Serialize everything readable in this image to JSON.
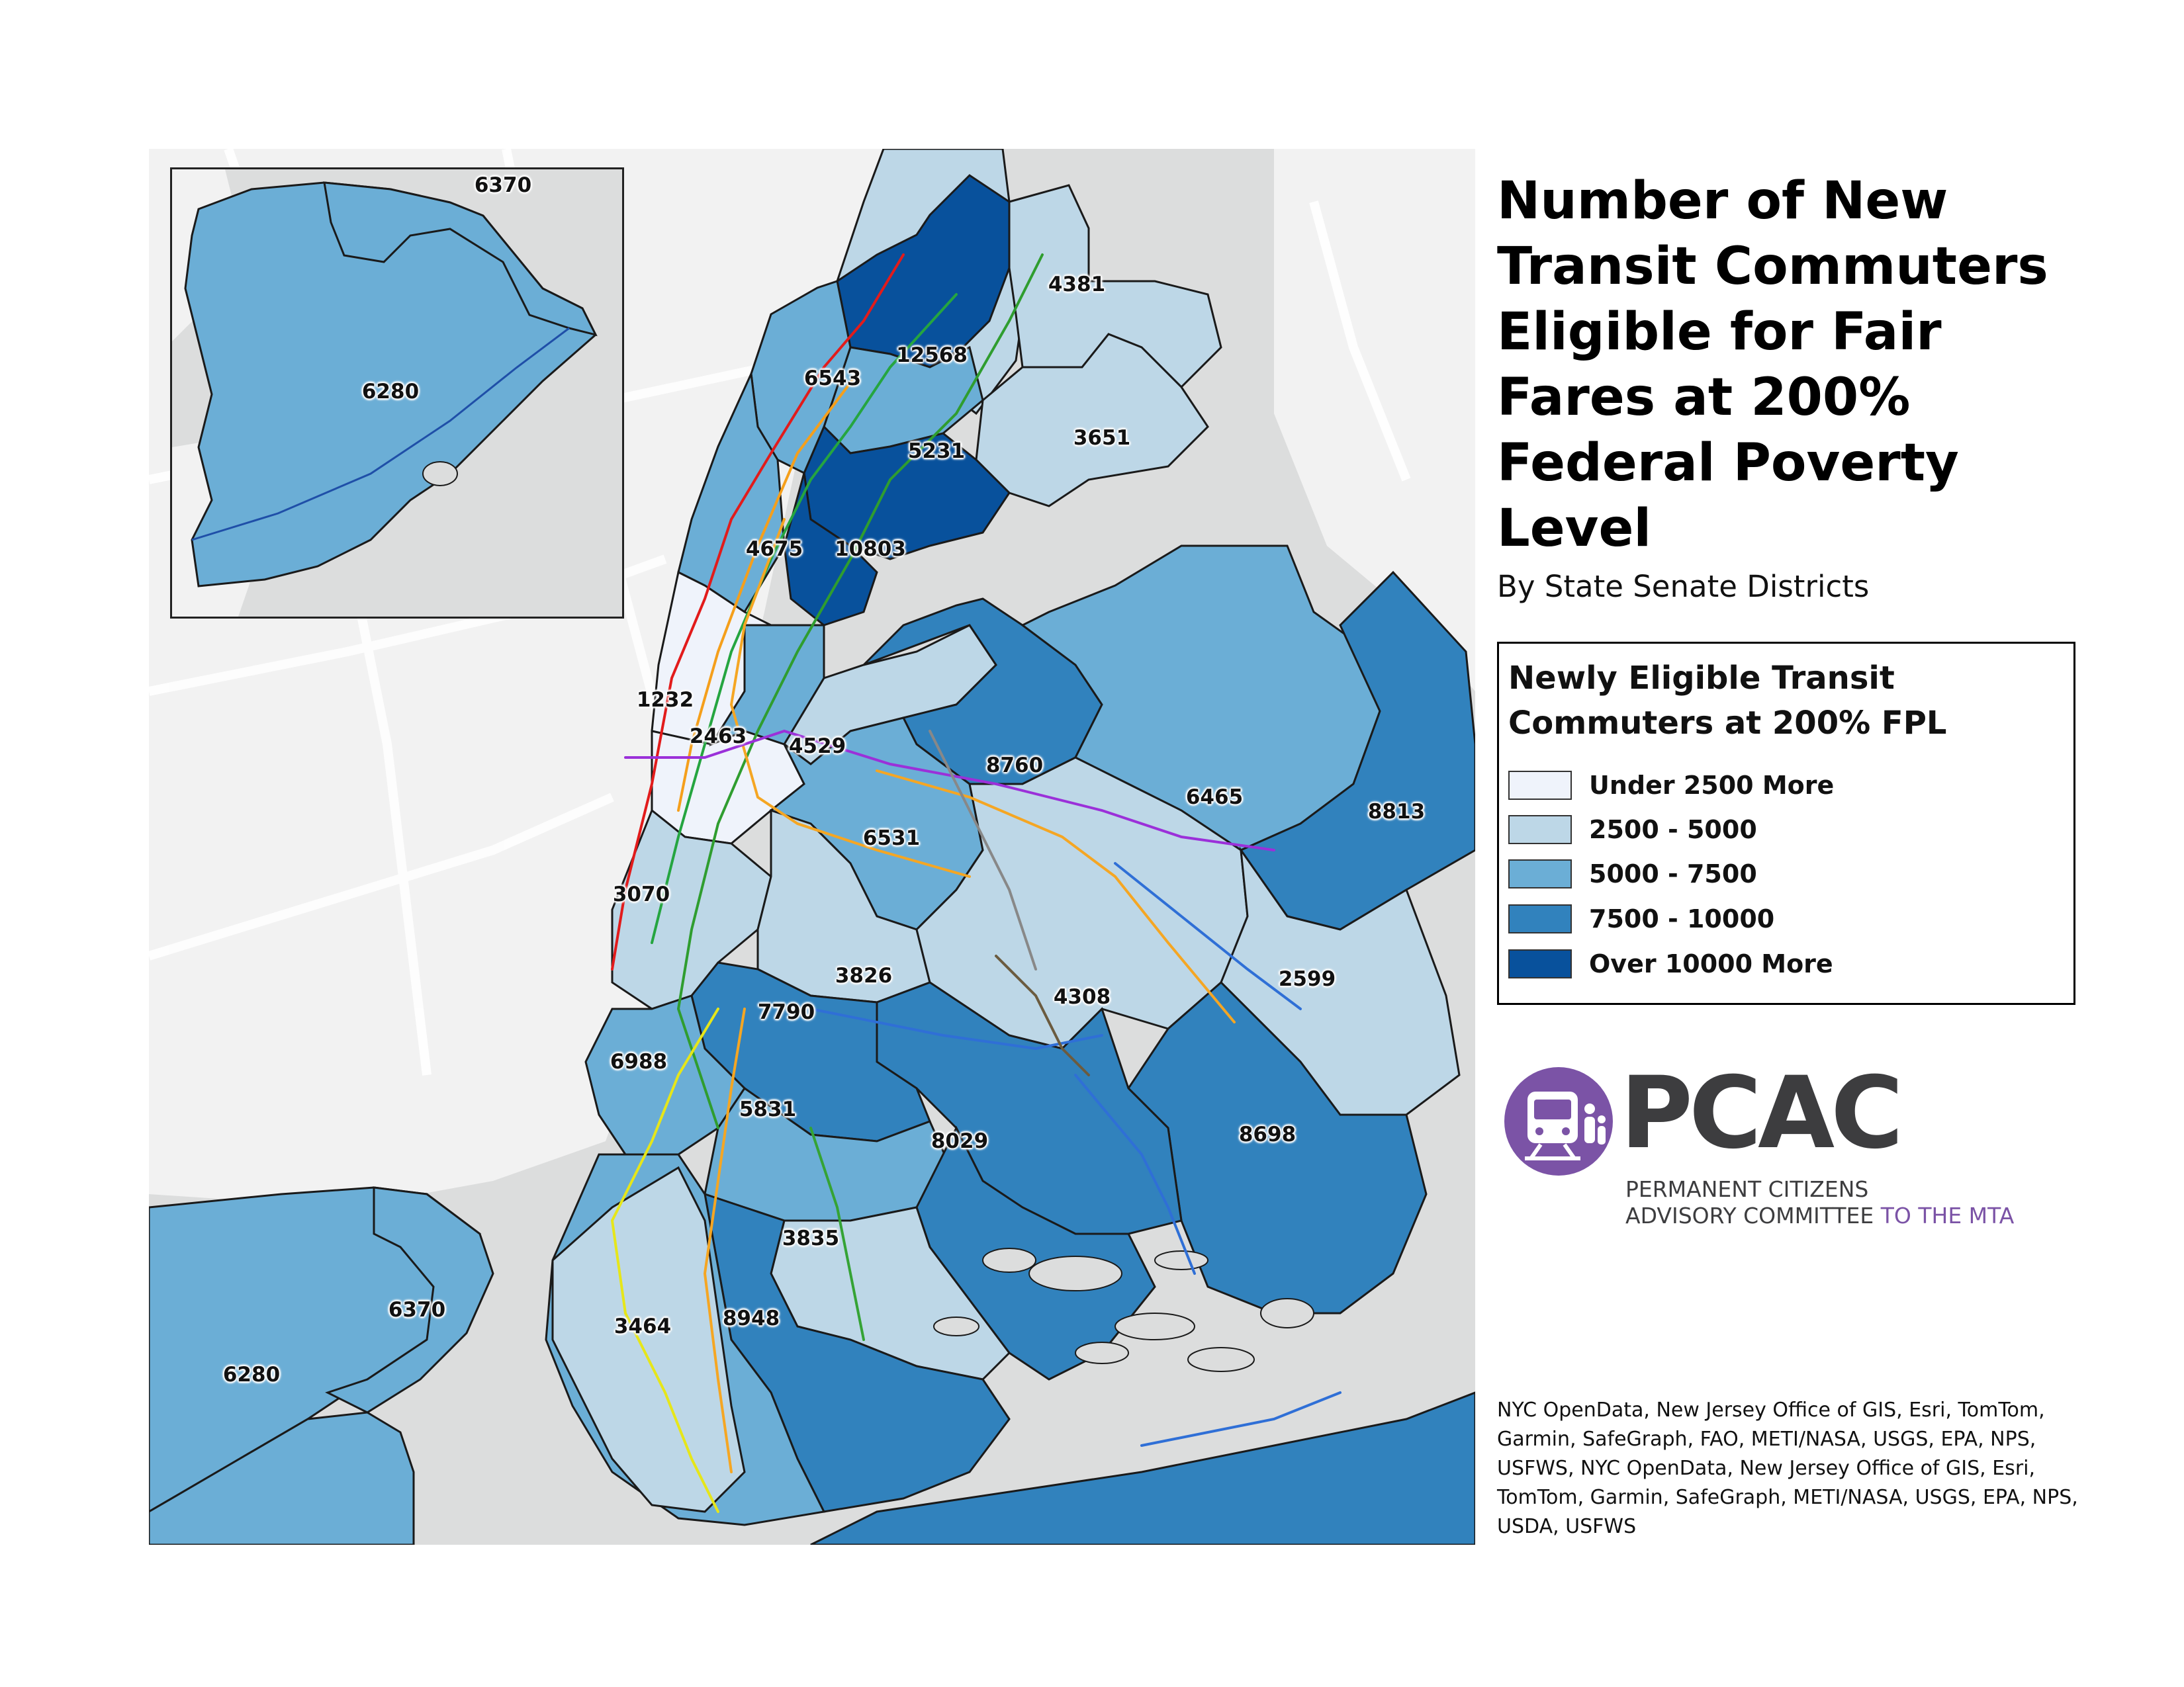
{
  "title": "Number of New Transit Commuters Eligible for Fair Fares at 200% Federal Poverty Level",
  "subtitle": "By State Senate Districts",
  "legend": {
    "title": "Newly Eligible Transit Commuters at 200% FPL",
    "items": [
      {
        "label": "Under 2500 More",
        "color": "#eff3fb"
      },
      {
        "label": "2500 - 5000",
        "color": "#bdd7e7"
      },
      {
        "label": "5000 - 7500",
        "color": "#6baed6"
      },
      {
        "label": "7500 - 10000",
        "color": "#3182bd"
      },
      {
        "label": "Over 10000 More",
        "color": "#08519c"
      }
    ]
  },
  "districts": [
    {
      "value": "6370"
    },
    {
      "value": "6280"
    },
    {
      "value": "4381"
    },
    {
      "value": "12568"
    },
    {
      "value": "6543"
    },
    {
      "value": "5231"
    },
    {
      "value": "3651"
    },
    {
      "value": "4675"
    },
    {
      "value": "10803"
    },
    {
      "value": "1232"
    },
    {
      "value": "2463"
    },
    {
      "value": "4529"
    },
    {
      "value": "8760"
    },
    {
      "value": "6465"
    },
    {
      "value": "8813"
    },
    {
      "value": "6531"
    },
    {
      "value": "3070"
    },
    {
      "value": "3826"
    },
    {
      "value": "4308"
    },
    {
      "value": "2599"
    },
    {
      "value": "7790"
    },
    {
      "value": "6988"
    },
    {
      "value": "5831"
    },
    {
      "value": "8029"
    },
    {
      "value": "8698"
    },
    {
      "value": "3835"
    },
    {
      "value": "6370"
    },
    {
      "value": "6280"
    },
    {
      "value": "3464"
    },
    {
      "value": "8948"
    }
  ],
  "logo": {
    "name": "PCAC",
    "line1": "PERMANENT CITIZENS",
    "line2_main": "ADVISORY COMMITTEE ",
    "line2_accent": "TO THE MTA",
    "accent_color": "#7b53a6"
  },
  "credits": "NYC OpenData, New Jersey Office of GIS, Esri, TomTom, Garmin, SafeGraph, FAO, METI/NASA, USGS, EPA, NPS, USFWS, NYC OpenData, New Jersey Office of GIS, Esri, TomTom, Garmin, SafeGraph, METI/NASA, USGS, EPA, NPS, USDA, USFWS"
}
